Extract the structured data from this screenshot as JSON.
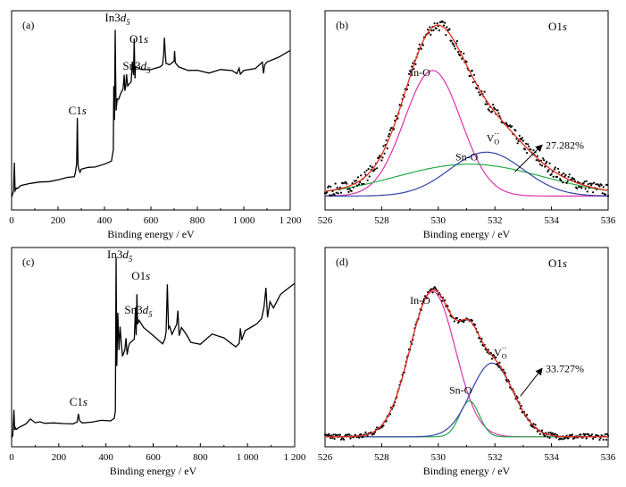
{
  "chart_data": [
    {
      "id": "a",
      "panel_label": "(a)",
      "type": "line",
      "xlabel": "Binding energy / eV",
      "xticks": [
        "0",
        "200",
        "400",
        "600",
        "800",
        "1 000",
        "1 200"
      ],
      "xlim": [
        0,
        1200
      ],
      "ylim": [
        0,
        100
      ],
      "y_ticks_shown": false,
      "color": "#000000",
      "series": [
        {
          "x": [
            0,
            8,
            12,
            15,
            18,
            20,
            25,
            40,
            80,
            120,
            160,
            200,
            240,
            270,
            275,
            280,
            283,
            286,
            290,
            295,
            300,
            330,
            360,
            400,
            430,
            438,
            440,
            443,
            446,
            448,
            450,
            455,
            460,
            465,
            470,
            480,
            485,
            488,
            492,
            495,
            500,
            515,
            520,
            525,
            528,
            531,
            534,
            540,
            560,
            600,
            640,
            650,
            655,
            658,
            661,
            665,
            680,
            700,
            702,
            705,
            720,
            760,
            800,
            850,
            900,
            950,
            970,
            980,
            985,
            1000,
            1050,
            1080,
            1085,
            1090,
            1100,
            1150,
            1200
          ],
          "values": [
            7,
            9,
            24,
            10,
            10,
            11,
            11,
            12,
            13,
            14,
            14,
            15,
            16,
            17,
            19,
            23,
            46,
            23,
            20,
            19,
            20,
            21,
            22,
            23,
            24,
            30,
            62,
            45,
            90,
            68,
            50,
            56,
            55,
            57,
            59,
            61,
            68,
            60,
            62,
            68,
            62,
            64,
            75,
            68,
            86,
            66,
            72,
            72,
            70,
            71,
            72,
            73,
            78,
            86,
            80,
            74,
            73,
            75,
            80,
            74,
            72,
            70,
            70,
            69,
            70,
            70,
            68,
            71,
            68,
            70,
            71,
            74,
            68,
            73,
            74,
            77,
            80
          ]
        }
      ],
      "annotations": [
        {
          "text": "C1s",
          "x": 283
        },
        {
          "text": "In3d5",
          "x": 440
        },
        {
          "text": "Sn3d5",
          "x": 486
        },
        {
          "text": "O1s",
          "x": 531
        }
      ]
    },
    {
      "id": "b",
      "panel_label": "(b)",
      "type": "line",
      "xlabel": "Binding energy / eV",
      "xticks": [
        "526",
        "528",
        "530",
        "532",
        "534",
        "536"
      ],
      "xlim": [
        526,
        536
      ],
      "ylim": [
        0,
        100
      ],
      "y_ticks_shown": false,
      "corner_label": "O1s",
      "series": [
        {
          "name": "In-O",
          "color": "#dd33aa",
          "center": 529.8,
          "height": 63,
          "width": 1.0,
          "baseline": 7
        },
        {
          "name": "Sn-O",
          "color": "#22aa44",
          "center": 531.1,
          "height": 16,
          "width": 2.6,
          "baseline": 7
        },
        {
          "name": "VO",
          "color": "#3344aa",
          "center": 531.7,
          "height": 22,
          "width": 1.3,
          "baseline": 7
        },
        {
          "name": "Fit",
          "color": "#e03020",
          "baseline": 7
        },
        {
          "name": "Data",
          "color": "#000000",
          "style": "dotted"
        }
      ],
      "annotations": [
        {
          "text": "In-O"
        },
        {
          "text": "Sn-O"
        },
        {
          "text": "V",
          "sub": "O",
          "sup": "··"
        },
        {
          "text": "27.282%"
        }
      ]
    },
    {
      "id": "c",
      "panel_label": "(c)",
      "type": "line",
      "xlabel": "Binding energy / eV",
      "xticks": [
        "0",
        "200",
        "400",
        "600",
        "800",
        "1 000",
        "1 200"
      ],
      "xlim": [
        0,
        1200
      ],
      "ylim": [
        0,
        100
      ],
      "y_ticks_shown": false,
      "color": "#000000",
      "series": [
        {
          "x": [
            0,
            5,
            10,
            13,
            16,
            20,
            30,
            60,
            80,
            100,
            120,
            140,
            180,
            220,
            260,
            278,
            283,
            288,
            300,
            340,
            380,
            420,
            435,
            440,
            443,
            446,
            450,
            455,
            460,
            465,
            470,
            480,
            485,
            490,
            495,
            500,
            520,
            525,
            528,
            531,
            534,
            540,
            560,
            600,
            640,
            650,
            655,
            660,
            665,
            670,
            680,
            700,
            705,
            710,
            720,
            740,
            760,
            800,
            850,
            900,
            950,
            965,
            970,
            975,
            990,
            1020,
            1040,
            1060,
            1070,
            1078,
            1085,
            1095,
            1110,
            1140,
            1160,
            1180,
            1200
          ],
          "values": [
            5,
            6,
            18,
            8,
            9,
            9,
            10,
            12,
            14,
            12,
            13,
            12,
            12,
            12,
            12,
            13,
            17,
            13,
            12,
            12,
            13,
            13,
            14,
            18,
            95,
            40,
            67,
            48,
            60,
            52,
            45,
            49,
            55,
            46,
            50,
            52,
            54,
            70,
            56,
            77,
            62,
            64,
            60,
            56,
            52,
            54,
            58,
            82,
            60,
            60,
            56,
            62,
            68,
            56,
            60,
            56,
            52,
            52,
            56,
            55,
            50,
            52,
            60,
            54,
            58,
            60,
            62,
            64,
            70,
            80,
            65,
            73,
            70,
            76,
            78,
            80,
            82
          ]
        }
      ],
      "annotations": [
        {
          "text": "C1s",
          "x": 283
        },
        {
          "text": "In3d5",
          "x": 443
        },
        {
          "text": "Sn3d5",
          "x": 486
        },
        {
          "text": "O1s",
          "x": 531
        }
      ]
    },
    {
      "id": "d",
      "panel_label": "(d)",
      "type": "line",
      "xlabel": "Binding energy / eV",
      "xticks": [
        "526",
        "528",
        "530",
        "532",
        "534",
        "536"
      ],
      "xlim": [
        526,
        536
      ],
      "ylim": [
        0,
        100
      ],
      "y_ticks_shown": false,
      "corner_label": "O1s",
      "series": [
        {
          "name": "In-O",
          "color": "#dd33aa",
          "center": 529.8,
          "height": 73,
          "width": 0.8,
          "baseline": 5
        },
        {
          "name": "Sn-O",
          "color": "#22aa44",
          "center": 531.1,
          "height": 18,
          "width": 0.35,
          "baseline": 5
        },
        {
          "name": "VO",
          "color": "#3344aa",
          "center": 531.9,
          "height": 37,
          "width": 0.75,
          "baseline": 5
        },
        {
          "name": "Fit",
          "color": "#e03020",
          "baseline": 5
        },
        {
          "name": "Data",
          "color": "#000000",
          "style": "dotted"
        }
      ],
      "annotations": [
        {
          "text": "In-O"
        },
        {
          "text": "Sn-O"
        },
        {
          "text": "V",
          "sub": "O",
          "sup": "··"
        },
        {
          "text": "33.727%"
        }
      ]
    }
  ]
}
